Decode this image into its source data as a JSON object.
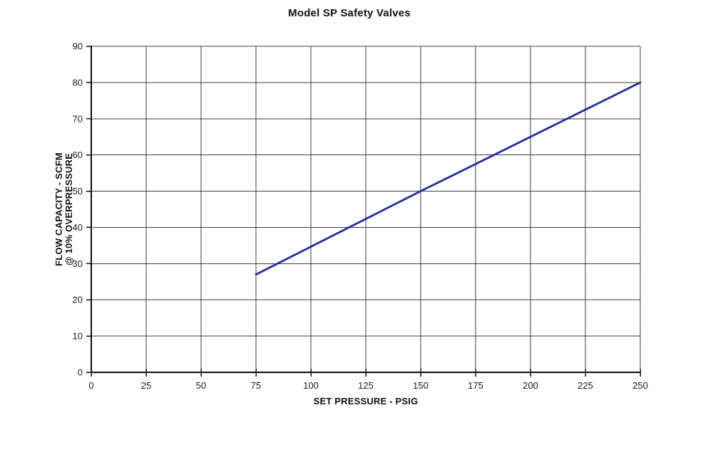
{
  "page": {
    "background_color": "#ffffff"
  },
  "chart_data": {
    "type": "line",
    "title": "Model SP Safety Valves",
    "xlabel": "SET PRESSURE - PSIG",
    "ylabel_line1": "FLOW CAPACITY - SCFM",
    "ylabel_line2": "@ 10% OVERPRESSURE",
    "xlim": [
      0,
      250
    ],
    "ylim": [
      0,
      90
    ],
    "x_ticks": [
      0,
      25,
      50,
      75,
      100,
      125,
      150,
      175,
      200,
      225,
      250
    ],
    "y_ticks": [
      0,
      10,
      20,
      30,
      40,
      50,
      60,
      70,
      80,
      90
    ],
    "grid": true,
    "legend": "none",
    "series": [
      {
        "name": "flow-capacity-vs-set-pressure",
        "color": "#1e2f9f",
        "points": [
          [
            75,
            27
          ],
          [
            150,
            50
          ],
          [
            250,
            80
          ]
        ]
      }
    ]
  },
  "style": {
    "grid_color": "#3d3d3d",
    "axis_color": "#0d0d0d",
    "tick_text_color": "#1a1a1a",
    "series_color": "#1e2f9f"
  }
}
